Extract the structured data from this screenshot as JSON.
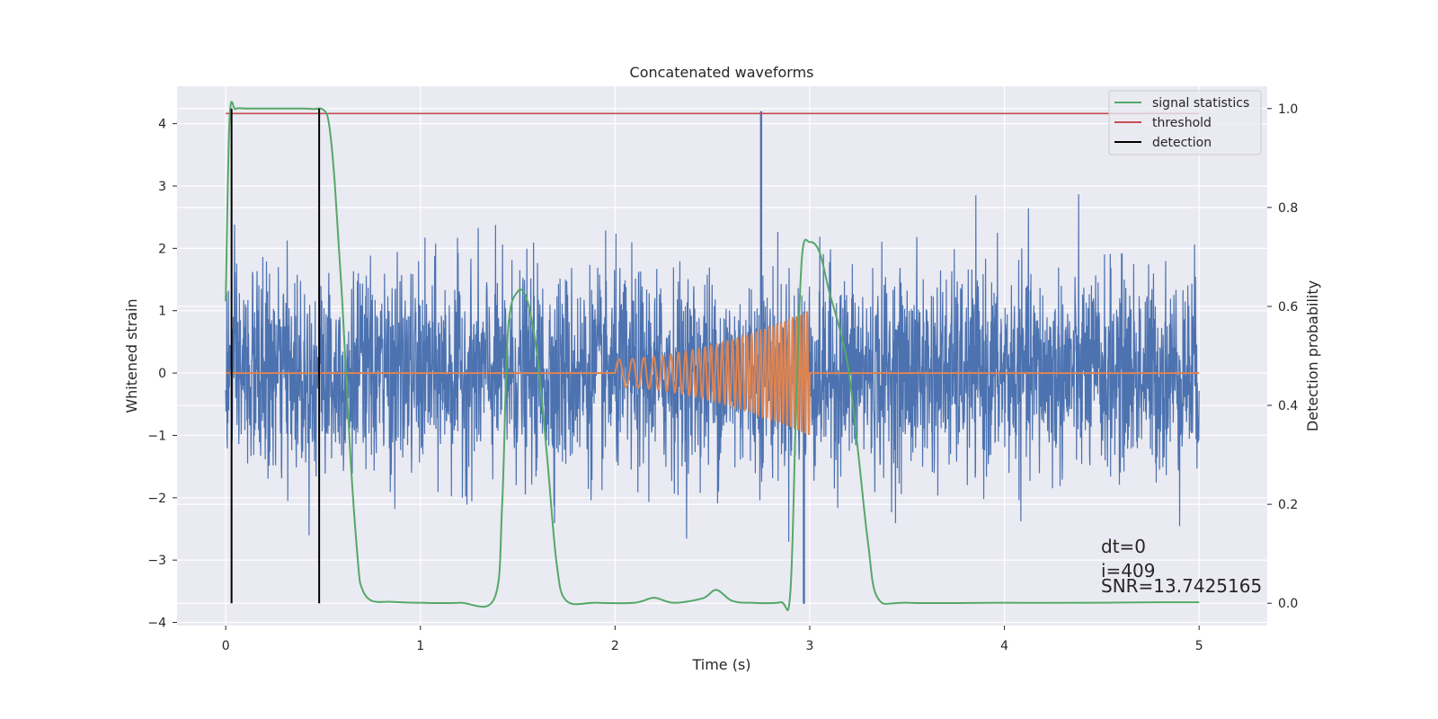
{
  "chart_data": {
    "type": "line",
    "title": "Concatenated waveforms",
    "xlabel": "Time (s)",
    "ylabel": "Whitened strain",
    "ylabel_right": "Detection probability",
    "xlim": [
      -0.25,
      5.35
    ],
    "ylim_left": [
      -4.05,
      4.6
    ],
    "ylim_right": [
      -0.045,
      1.045
    ],
    "xticks": [
      "0",
      "1",
      "2",
      "3",
      "4",
      "5"
    ],
    "yticks_left": [
      "−4",
      "−3",
      "−2",
      "−1",
      "0",
      "1",
      "2",
      "3",
      "4"
    ],
    "yticks_right": [
      "0.0",
      "0.2",
      "0.4",
      "0.6",
      "0.8",
      "1.0"
    ],
    "grid": true,
    "legend_position": "top-right",
    "legend": [
      "signal statistics",
      "threshold",
      "detection"
    ],
    "colors": {
      "strain": "#4c72b0",
      "injection": "#dd8452",
      "signal_statistics": "#55a868",
      "threshold": "#c44e52",
      "detection": "#000000",
      "axes_bg": "#eaeaf2",
      "grid": "#ffffff"
    },
    "series": [
      {
        "name": "signal statistics",
        "axis": "right",
        "x": [
          0.0,
          0.02,
          0.05,
          0.1,
          0.2,
          0.3,
          0.4,
          0.45,
          0.5,
          0.53,
          0.56,
          0.6,
          0.64,
          0.68,
          0.7,
          0.75,
          0.85,
          1.0,
          1.2,
          1.38,
          1.42,
          1.45,
          1.5,
          1.55,
          1.6,
          1.65,
          1.7,
          1.75,
          1.9,
          2.1,
          2.2,
          2.3,
          2.45,
          2.52,
          2.6,
          2.7,
          2.85,
          2.9,
          2.93,
          2.96,
          3.0,
          3.05,
          3.1,
          3.15,
          3.2,
          3.25,
          3.3,
          3.35,
          3.5,
          4.0,
          4.5,
          4.8,
          5.0
        ],
        "values": [
          0.61,
          0.98,
          0.999,
          1.0,
          1.0,
          1.0,
          1.0,
          0.999,
          0.998,
          0.97,
          0.85,
          0.6,
          0.3,
          0.08,
          0.03,
          0.005,
          0.003,
          0.001,
          0.001,
          0.01,
          0.2,
          0.55,
          0.63,
          0.61,
          0.5,
          0.3,
          0.08,
          0.005,
          0.001,
          0.001,
          0.011,
          0.001,
          0.01,
          0.027,
          0.005,
          0.001,
          0.002,
          0.02,
          0.4,
          0.7,
          0.73,
          0.71,
          0.63,
          0.56,
          0.47,
          0.3,
          0.12,
          0.01,
          0.001,
          0.001,
          0.001,
          0.002,
          0.002
        ]
      },
      {
        "name": "threshold",
        "axis": "right",
        "x": [
          0,
          5
        ],
        "values": [
          0.99,
          0.99
        ]
      },
      {
        "name": "detection",
        "axis": "right",
        "type": "vlines",
        "x": [
          0.03,
          0.48
        ],
        "ymin": 0.0,
        "ymax": 1.0
      },
      {
        "axis": "left",
        "type": "noise",
        "x_range": [
          0,
          5
        ],
        "std": 0.8,
        "note_peak_values": [
          4.2,
          -3.7
        ]
      },
      {
        "axis": "left",
        "type": "chirp",
        "x_range": [
          2.0,
          3.0
        ],
        "amplitude_start": 0.22,
        "amplitude_end": 1.0
      }
    ],
    "annotations": [
      "dt=0",
      "i=409",
      "SNR=13.7425165"
    ]
  }
}
